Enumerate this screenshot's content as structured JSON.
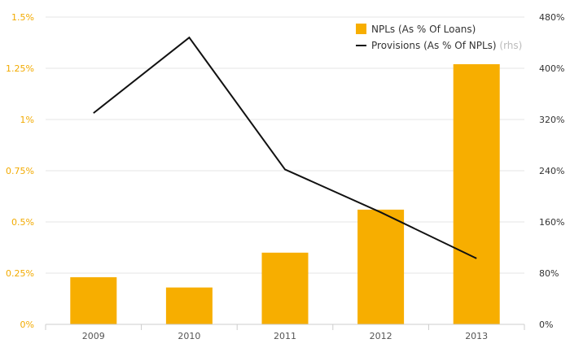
{
  "chart_data": {
    "type": "bar",
    "categories": [
      "2009",
      "2010",
      "2011",
      "2012",
      "2013"
    ],
    "series": [
      {
        "name": "NPLs (As % Of Loans)",
        "type": "bar",
        "axis": "left",
        "values": [
          0.23,
          0.18,
          0.35,
          0.56,
          1.27
        ],
        "color": "#f7ae00"
      },
      {
        "name": "Provisions (As % Of NPLs)",
        "name_suffix": "(rhs)",
        "type": "line",
        "axis": "right",
        "values": [
          330,
          448,
          242,
          175,
          103
        ],
        "color": "#111111"
      }
    ],
    "y_left": {
      "min": 0,
      "max": 1.5,
      "tick_values": [
        0,
        0.25,
        0.5,
        0.75,
        1,
        1.25,
        1.5
      ],
      "tick_labels": [
        "0%",
        "0.25%",
        "0.5%",
        "0.75%",
        "1%",
        "1.25%",
        "1.5%"
      ],
      "label_color": "#f2aa00"
    },
    "y_right": {
      "min": 0,
      "max": 480,
      "tick_values": [
        0,
        80,
        160,
        240,
        320,
        400,
        480
      ],
      "tick_labels": [
        "0%",
        "80%",
        "160%",
        "240%",
        "320%",
        "400%",
        "480%"
      ]
    },
    "grid": true,
    "legend_position": "top-right"
  }
}
